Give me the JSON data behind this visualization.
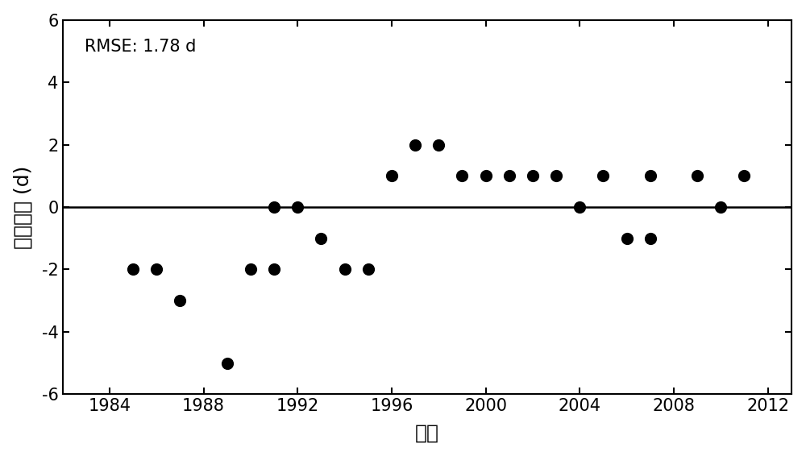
{
  "title_annotation": "RMSE: 1.78 d",
  "xlabel": "年份",
  "ylabel": "模拟误差 (d)",
  "xlim": [
    1982,
    2013
  ],
  "ylim": [
    -6,
    6
  ],
  "xticks": [
    1984,
    1988,
    1992,
    1996,
    2000,
    2004,
    2008,
    2012
  ],
  "yticks": [
    -6,
    -4,
    -2,
    0,
    2,
    4,
    6
  ],
  "background_color": "#ffffff",
  "point_color": "#000000",
  "x_data": [
    1985,
    1986,
    1987,
    1989,
    1990,
    1991,
    1991,
    1992,
    1993,
    1994,
    1995,
    1996,
    1997,
    1998,
    1999,
    2000,
    2001,
    2002,
    2003,
    2004,
    2005,
    2006,
    2007,
    2007,
    2009,
    2010,
    2011
  ],
  "y_data": [
    -2,
    -2,
    -3,
    -5,
    -2,
    -2,
    0,
    0,
    -1,
    -2,
    -2,
    1,
    2,
    2,
    1,
    1,
    1,
    1,
    1,
    0,
    1,
    -1,
    1,
    -1,
    1,
    0,
    1
  ]
}
